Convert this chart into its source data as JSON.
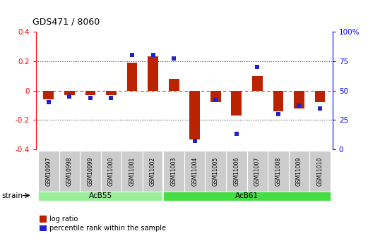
{
  "title": "GDS471 / 8060",
  "samples": [
    "GSM10997",
    "GSM10998",
    "GSM10999",
    "GSM11000",
    "GSM11001",
    "GSM11002",
    "GSM11003",
    "GSM11004",
    "GSM11005",
    "GSM11006",
    "GSM11007",
    "GSM11008",
    "GSM11009",
    "GSM11010"
  ],
  "log_ratio": [
    -0.06,
    -0.03,
    -0.03,
    -0.03,
    0.19,
    0.23,
    0.08,
    -0.33,
    -0.08,
    -0.17,
    0.1,
    -0.14,
    -0.12,
    -0.08
  ],
  "percentile_rank": [
    40,
    45,
    44,
    44,
    80,
    80,
    77,
    7,
    42,
    13,
    70,
    30,
    37,
    35
  ],
  "groups": [
    {
      "label": "AcB55",
      "start": 0,
      "end": 5,
      "color": "#99ee99"
    },
    {
      "label": "AcB61",
      "start": 6,
      "end": 13,
      "color": "#44dd44"
    }
  ],
  "ylim_left": [
    -0.4,
    0.4
  ],
  "ylim_right": [
    0,
    100
  ],
  "hlines": [
    0.2,
    -0.2
  ],
  "bar_color": "#bb2200",
  "dot_color": "#2222cc",
  "zero_line_color": "#dd3333",
  "hline_color": "#333333",
  "bg_color": "#ffffff",
  "sample_box_color": "#cccccc",
  "strain_label": "strain",
  "legend_log_ratio": "log ratio",
  "legend_percentile": "percentile rank within the sample"
}
